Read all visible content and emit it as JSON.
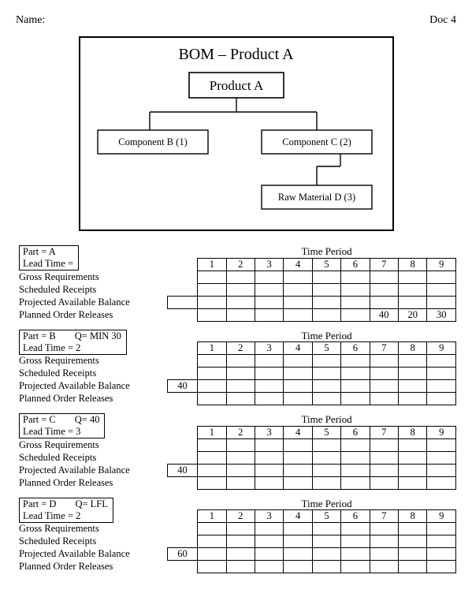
{
  "header": {
    "name_label": "Name:",
    "doc_label": "Doc 4"
  },
  "bom": {
    "title": "BOM – Product A",
    "root": "Product A",
    "child_b": "Component B (1)",
    "child_c": "Component C (2)",
    "child_d": "Raw Material D (3)",
    "border_color": "#000000",
    "box_stroke_width": 1.5,
    "title_fontsize": 20,
    "root_fontsize": 17,
    "node_fontsize": 12.5
  },
  "tables": {
    "time_period_label": "Time Period",
    "periods": [
      "1",
      "2",
      "3",
      "4",
      "5",
      "6",
      "7",
      "8",
      "9"
    ],
    "row_labels": {
      "gross": "Gross Requirements",
      "sched": "Scheduled Receipts",
      "pab": "Projected Available Balance",
      "por": "Planned Order Releases"
    },
    "parts": [
      {
        "id": "A",
        "part_line": "Part = A",
        "q_line": "",
        "lead_line": "Lead Time =",
        "rows": {
          "gross": [
            "",
            "",
            "",
            "",
            "",
            "",
            "",
            "",
            ""
          ],
          "sched": [
            "",
            "",
            "",
            "",
            "",
            "",
            "",
            "",
            ""
          ],
          "pab": [
            "",
            "",
            "",
            "",
            "",
            "",
            "",
            "",
            ""
          ],
          "por": [
            "",
            "",
            "",
            "",
            "",
            "",
            "40",
            "20",
            "30"
          ]
        }
      },
      {
        "id": "B",
        "part_line": "Part = B",
        "q_line": "Q= MIN 30",
        "lead_line": "Lead Time = 2",
        "rows": {
          "gross": [
            "",
            "",
            "",
            "",
            "",
            "",
            "",
            "",
            ""
          ],
          "sched": [
            "",
            "",
            "",
            "",
            "",
            "",
            "",
            "",
            ""
          ],
          "pab": [
            "40",
            "",
            "",
            "",
            "",
            "",
            "",
            "",
            ""
          ],
          "por": [
            "",
            "",
            "",
            "",
            "",
            "",
            "",
            "",
            ""
          ]
        }
      },
      {
        "id": "C",
        "part_line": "Part = C",
        "q_line": "Q= 40",
        "lead_line": "Lead Time = 3",
        "rows": {
          "gross": [
            "",
            "",
            "",
            "",
            "",
            "",
            "",
            "",
            ""
          ],
          "sched": [
            "",
            "",
            "",
            "",
            "",
            "",
            "",
            "",
            ""
          ],
          "pab": [
            "40",
            "",
            "",
            "",
            "",
            "",
            "",
            "",
            ""
          ],
          "por": [
            "",
            "",
            "",
            "",
            "",
            "",
            "",
            "",
            ""
          ]
        }
      },
      {
        "id": "D",
        "part_line": "Part = D",
        "q_line": "Q= LFL",
        "lead_line": "Lead Time = 2",
        "rows": {
          "gross": [
            "",
            "",
            "",
            "",
            "",
            "",
            "",
            "",
            ""
          ],
          "sched": [
            "",
            "",
            "",
            "",
            "",
            "",
            "",
            "",
            ""
          ],
          "pab": [
            "60",
            "",
            "",
            "",
            "",
            "",
            "",
            "",
            ""
          ],
          "por": [
            "",
            "",
            "",
            "",
            "",
            "",
            "",
            "",
            ""
          ]
        }
      }
    ]
  },
  "style": {
    "page_bg": "#ffffff",
    "text_color": "#000000",
    "border_color": "#000000",
    "font_family": "Times New Roman",
    "body_fontsize": 12.5
  }
}
